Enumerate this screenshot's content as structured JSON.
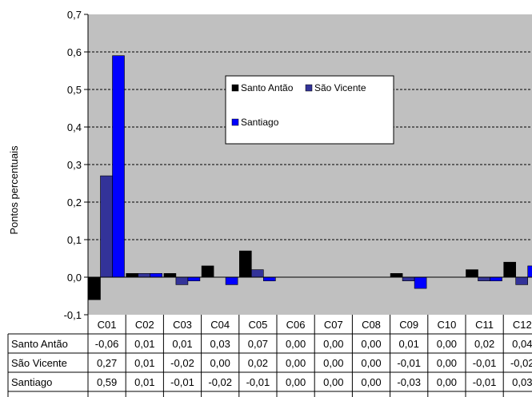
{
  "chart_data": {
    "type": "bar",
    "title": "",
    "xlabel": "",
    "ylabel": "Pontos percentuais",
    "ylim": [
      -0.1,
      0.7
    ],
    "yticks": [
      "0,7",
      "0,6",
      "0,5",
      "0,4",
      "0,3",
      "0,2",
      "0,1",
      "0,0",
      "-0,1"
    ],
    "grid": true,
    "legend_position": "top-center",
    "plot_background": "#c0c0c0",
    "categories": [
      "C01",
      "C02",
      "C03",
      "C04",
      "C05",
      "C06",
      "C07",
      "C08",
      "C09",
      "C10",
      "C11",
      "C12"
    ],
    "series": [
      {
        "name": "Santo Antão",
        "color": "#000000",
        "values": [
          -0.06,
          0.01,
          0.01,
          0.03,
          0.07,
          0.0,
          0.0,
          0.0,
          0.01,
          0.0,
          0.02,
          0.04
        ],
        "labels": [
          "-0,06",
          "0,01",
          "0,01",
          "0,03",
          "0,07",
          "0,00",
          "0,00",
          "0,00",
          "0,01",
          "0,00",
          "0,02",
          "0,04"
        ]
      },
      {
        "name": "São Vicente",
        "color": "#333399",
        "values": [
          0.27,
          0.01,
          -0.02,
          0.0,
          0.02,
          0.0,
          0.0,
          0.0,
          -0.01,
          0.0,
          -0.01,
          -0.02
        ],
        "labels": [
          "0,27",
          "0,01",
          "-0,02",
          "0,00",
          "0,02",
          "0,00",
          "0,00",
          "0,00",
          "-0,01",
          "0,00",
          "-0,01",
          "-0,02"
        ]
      },
      {
        "name": "Santiago",
        "color": "#0000ff",
        "values": [
          0.59,
          0.01,
          -0.01,
          -0.02,
          -0.01,
          0.0,
          0.0,
          0.0,
          -0.03,
          0.0,
          -0.01,
          0.03
        ],
        "labels": [
          "0,59",
          "0,01",
          "-0,01",
          "-0,02",
          "-0,01",
          "0,00",
          "0,00",
          "0,00",
          "-0,03",
          "0,00",
          "-0,01",
          "0,03"
        ]
      }
    ]
  }
}
